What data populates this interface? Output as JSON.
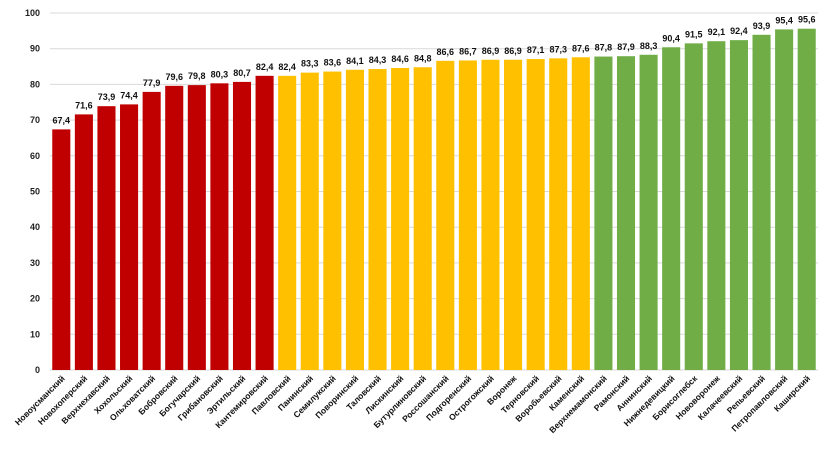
{
  "chart_data": {
    "type": "bar",
    "title": "",
    "xlabel": "",
    "ylabel": "",
    "ylim": [
      0,
      100
    ],
    "yticks": [
      0,
      10,
      20,
      30,
      40,
      50,
      60,
      70,
      80,
      90,
      100
    ],
    "grid": true,
    "categories": [
      "Новоусманский",
      "Новохоперский",
      "Верхнехавский",
      "Хохольский",
      "Ольховатский",
      "Бобровский",
      "Богучарский",
      "Грибановский",
      "Эртильский",
      "Кантемировский",
      "Павловский",
      "Панинский",
      "Семилукский",
      "Поворинский",
      "Таловский",
      "Лискинский",
      "Бутурлиновский",
      "Россошанский",
      "Подгоренский",
      "Острогожский",
      "Воронеж",
      "Терновский",
      "Воробьевский",
      "Каменский",
      "Верхнемамонский",
      "Рамонский",
      "Аннинский",
      "Нижнедевицкий",
      "Борисоглебск",
      "Нововоронеж",
      "Калачеевский",
      "Репьевский",
      "Петропавловский",
      "Каширский"
    ],
    "values": [
      67.4,
      71.6,
      73.9,
      74.4,
      77.9,
      79.6,
      79.8,
      80.3,
      80.7,
      82.4,
      82.4,
      83.3,
      83.6,
      84.1,
      84.3,
      84.6,
      84.8,
      86.6,
      86.7,
      86.9,
      86.9,
      87.1,
      87.3,
      87.6,
      87.8,
      87.9,
      88.3,
      90.4,
      91.5,
      92.1,
      92.4,
      93.9,
      95.4,
      95.6
    ],
    "value_labels": [
      "67,4",
      "71,6",
      "73,9",
      "74,4",
      "77,9",
      "79,6",
      "79,8",
      "80,3",
      "80,7",
      "82,4",
      "82,4",
      "83,3",
      "83,6",
      "84,1",
      "84,3",
      "84,6",
      "84,8",
      "86,6",
      "86,7",
      "86,9",
      "86,9",
      "87,1",
      "87,3",
      "87,6",
      "87,8",
      "87,9",
      "88,3",
      "90,4",
      "91,5",
      "92,1",
      "92,4",
      "93,9",
      "95,4",
      "95,6"
    ],
    "groups": [
      "red",
      "red",
      "red",
      "red",
      "red",
      "red",
      "red",
      "red",
      "red",
      "red",
      "yellow",
      "yellow",
      "yellow",
      "yellow",
      "yellow",
      "yellow",
      "yellow",
      "yellow",
      "yellow",
      "yellow",
      "yellow",
      "yellow",
      "yellow",
      "yellow",
      "green",
      "green",
      "green",
      "green",
      "green",
      "green",
      "green",
      "green",
      "green",
      "green"
    ],
    "colors": {
      "red": "#c00000",
      "yellow": "#ffc000",
      "green": "#70ad47",
      "grid": "#d9d9d9"
    }
  }
}
